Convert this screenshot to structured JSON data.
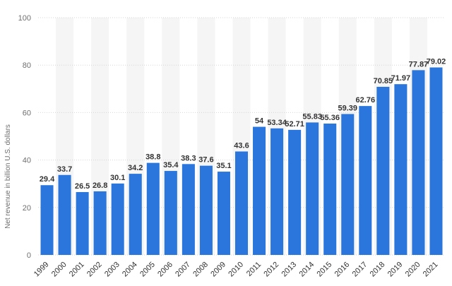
{
  "chart_data": {
    "type": "bar",
    "title": "",
    "xlabel": "",
    "ylabel": "Net revenue in billion U.S. dollars",
    "ylim": [
      0,
      100
    ],
    "yticks": [
      0,
      20,
      40,
      60,
      80,
      100
    ],
    "grid": true,
    "categories": [
      "1999",
      "2000",
      "2001",
      "2002",
      "2003",
      "2004",
      "2005",
      "2006",
      "2007",
      "2008",
      "2009",
      "2010",
      "2011",
      "2012",
      "2013",
      "2014",
      "2015",
      "2016",
      "2017",
      "2018",
      "2019",
      "2020",
      "2021"
    ],
    "values": [
      29.4,
      33.7,
      26.5,
      26.8,
      30.1,
      34.2,
      38.8,
      35.4,
      38.3,
      37.6,
      35.1,
      43.6,
      54,
      53.34,
      52.71,
      55.83,
      55.36,
      59.39,
      62.76,
      70.85,
      71.97,
      77.87,
      79.02
    ],
    "value_labels": [
      "29.4",
      "33.7",
      "26.5",
      "26.8",
      "30.1",
      "34.2",
      "38.8",
      "35.4",
      "38.3",
      "37.6",
      "35.1",
      "43.6",
      "54",
      "53.34",
      "52.71",
      "55.83",
      "55.36",
      "59.39",
      "62.76",
      "70.85",
      "71.97",
      "77.87",
      "79.02"
    ],
    "bar_color": "#2a76dd",
    "band_color": "#f5f5f5"
  }
}
